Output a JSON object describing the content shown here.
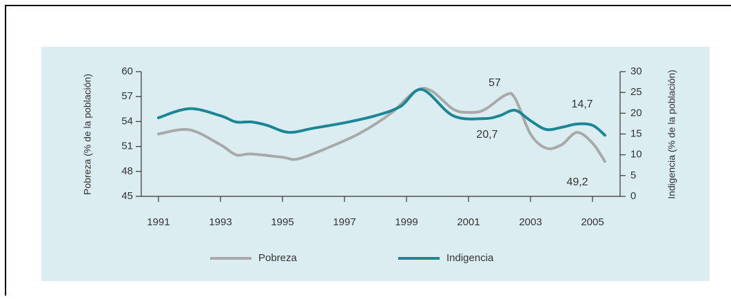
{
  "chart_data": {
    "type": "line",
    "ylabel": "Pobreza (% de la población)",
    "y2label": "Indigencia (% de la población)",
    "xlim": [
      1990.5,
      2006.5
    ],
    "xticks": [
      1991,
      1993,
      1995,
      1997,
      1999,
      2001,
      2003,
      2005
    ],
    "ylim": [
      45,
      60
    ],
    "yticks": [
      45,
      48,
      51,
      54,
      57,
      60
    ],
    "y2lim": [
      0,
      30
    ],
    "y2ticks": [
      0,
      5,
      10,
      15,
      20,
      25,
      30
    ],
    "series": [
      {
        "name": "Pobreza",
        "color": "#a9a9a9",
        "x": [
          1991,
          1992,
          1993,
          1993.5,
          1994,
          1995,
          1995.5,
          1996.5,
          1997.5,
          1998.5,
          1999.3,
          1999.8,
          2000.5,
          2001,
          2001.5,
          2002.2,
          2002.5,
          2003,
          2003.5,
          2004,
          2004.5,
          2005,
          2005.4
        ],
        "values": [
          52.5,
          53.0,
          51.2,
          50.0,
          50.1,
          49.7,
          49.5,
          50.9,
          52.6,
          55.0,
          57.7,
          57.7,
          55.5,
          55.1,
          55.4,
          57.2,
          56.8,
          52.5,
          50.8,
          51.2,
          52.7,
          51.4,
          49.2
        ]
      },
      {
        "name": "Indigencia",
        "color": "#1b8796",
        "axis": "y2",
        "x": [
          1991,
          1992,
          1993,
          1993.5,
          1994,
          1994.5,
          1995.2,
          1996,
          1997,
          1998,
          1998.8,
          1999.5,
          2000.5,
          2001.5,
          2002,
          2002.5,
          2003,
          2003.5,
          2004,
          2004.5,
          2005,
          2005.4
        ],
        "values": [
          18.9,
          21.1,
          19.4,
          17.9,
          17.9,
          17.1,
          15.4,
          16.4,
          17.7,
          19.4,
          21.6,
          25.7,
          19.4,
          18.7,
          19.4,
          20.7,
          18.2,
          16.1,
          16.6,
          17.4,
          17.1,
          14.7
        ]
      }
    ],
    "annotations": [
      "57",
      "20,7",
      "14,7",
      "49,2"
    ]
  }
}
